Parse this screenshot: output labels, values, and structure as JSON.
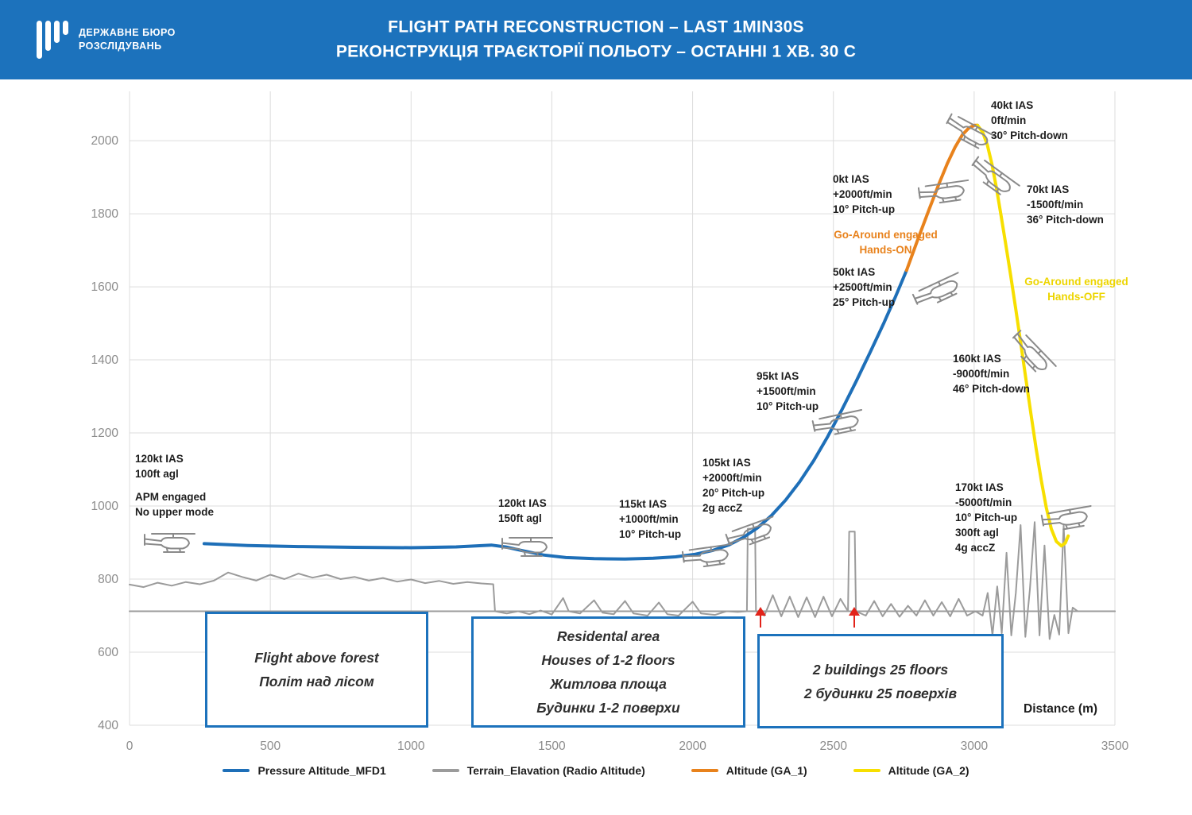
{
  "header": {
    "logo": {
      "line1": "ДЕРЖАВНЕ БЮРО",
      "line2": "РОЗСЛІДУВАНЬ"
    },
    "title_line1": "FLIGHT PATH RECONSTRUCTION – LAST 1MIN30S",
    "title_line2": "РЕКОНСТРУКЦІЯ ТРАЄКТОРІЇ ПОЛЬОТУ – ОСТАННІ 1 ХВ. 30 С"
  },
  "chart_data": {
    "type": "line",
    "title": "Flight path reconstruction – last 1min30s",
    "xlabel": "Distance (m)",
    "ylabel": "",
    "xlim": [
      0,
      3500
    ],
    "ylim": [
      400,
      2135
    ],
    "x_ticks": [
      0,
      500,
      1000,
      1500,
      2000,
      2500,
      3000,
      3500
    ],
    "y_ticks": [
      400,
      600,
      800,
      1000,
      1200,
      1400,
      1600,
      1800,
      2000
    ],
    "grid": true,
    "legend_position": "bottom",
    "series": [
      {
        "id": "ground-reference",
        "name": "Ground reference",
        "color": "#9B9B9B",
        "width": 2,
        "points": [
          [
            0,
            712
          ],
          [
            3500,
            712
          ]
        ]
      },
      {
        "id": "terrain",
        "name": "Terrain_Elavation (Radio Altitude)",
        "color": "#9B9B9B",
        "width": 2,
        "points": [
          [
            0,
            785
          ],
          [
            50,
            778
          ],
          [
            100,
            790
          ],
          [
            150,
            782
          ],
          [
            200,
            792
          ],
          [
            250,
            786
          ],
          [
            300,
            796
          ],
          [
            350,
            818
          ],
          [
            400,
            806
          ],
          [
            450,
            796
          ],
          [
            500,
            812
          ],
          [
            550,
            800
          ],
          [
            600,
            815
          ],
          [
            650,
            804
          ],
          [
            700,
            812
          ],
          [
            750,
            800
          ],
          [
            800,
            806
          ],
          [
            850,
            796
          ],
          [
            900,
            803
          ],
          [
            950,
            793
          ],
          [
            1000,
            799
          ],
          [
            1050,
            789
          ],
          [
            1100,
            795
          ],
          [
            1150,
            787
          ],
          [
            1200,
            792
          ],
          [
            1250,
            788
          ],
          [
            1292,
            786
          ],
          [
            1298,
            712
          ],
          [
            1340,
            706
          ],
          [
            1380,
            712
          ],
          [
            1420,
            704
          ],
          [
            1460,
            714
          ],
          [
            1500,
            703
          ],
          [
            1540,
            748
          ],
          [
            1560,
            712
          ],
          [
            1600,
            706
          ],
          [
            1650,
            742
          ],
          [
            1680,
            708
          ],
          [
            1720,
            704
          ],
          [
            1760,
            740
          ],
          [
            1790,
            706
          ],
          [
            1840,
            700
          ],
          [
            1880,
            736
          ],
          [
            1910,
            704
          ],
          [
            1950,
            700
          ],
          [
            2000,
            738
          ],
          [
            2030,
            706
          ],
          [
            2080,
            702
          ],
          [
            2120,
            712
          ],
          [
            2160,
            710
          ],
          [
            2193,
            712
          ],
          [
            2196,
            938
          ],
          [
            2222,
            938
          ],
          [
            2225,
            712
          ],
          [
            2255,
            700
          ],
          [
            2285,
            756
          ],
          [
            2315,
            698
          ],
          [
            2345,
            752
          ],
          [
            2375,
            696
          ],
          [
            2405,
            750
          ],
          [
            2435,
            696
          ],
          [
            2465,
            752
          ],
          [
            2495,
            698
          ],
          [
            2525,
            746
          ],
          [
            2552,
            712
          ],
          [
            2556,
            930
          ],
          [
            2576,
            930
          ],
          [
            2580,
            712
          ],
          [
            2615,
            700
          ],
          [
            2645,
            740
          ],
          [
            2675,
            698
          ],
          [
            2705,
            732
          ],
          [
            2735,
            697
          ],
          [
            2765,
            727
          ],
          [
            2795,
            700
          ],
          [
            2825,
            742
          ],
          [
            2855,
            700
          ],
          [
            2885,
            737
          ],
          [
            2915,
            698
          ],
          [
            2945,
            746
          ],
          [
            2975,
            700
          ],
          [
            3005,
            712
          ],
          [
            3030,
            700
          ],
          [
            3048,
            762
          ],
          [
            3065,
            646
          ],
          [
            3082,
            780
          ],
          [
            3098,
            652
          ],
          [
            3115,
            872
          ],
          [
            3132,
            646
          ],
          [
            3148,
            762
          ],
          [
            3165,
            948
          ],
          [
            3182,
            642
          ],
          [
            3198,
            772
          ],
          [
            3215,
            956
          ],
          [
            3232,
            646
          ],
          [
            3250,
            892
          ],
          [
            3268,
            636
          ],
          [
            3285,
            702
          ],
          [
            3302,
            648
          ],
          [
            3318,
            948
          ],
          [
            3335,
            652
          ],
          [
            3350,
            722
          ],
          [
            3368,
            712
          ],
          [
            3420,
            712
          ],
          [
            3500,
            712
          ]
        ]
      },
      {
        "id": "pressure-altitude",
        "name": "Pressure Altitude_MFD1",
        "color": "#1E6FB8",
        "width": 4,
        "points": [
          [
            265,
            897
          ],
          [
            420,
            892
          ],
          [
            600,
            889
          ],
          [
            800,
            887
          ],
          [
            1000,
            886
          ],
          [
            1160,
            888
          ],
          [
            1285,
            893
          ],
          [
            1335,
            888
          ],
          [
            1400,
            877
          ],
          [
            1470,
            866
          ],
          [
            1550,
            859
          ],
          [
            1650,
            856
          ],
          [
            1760,
            855
          ],
          [
            1860,
            857
          ],
          [
            1940,
            861
          ],
          [
            2010,
            868
          ],
          [
            2070,
            878
          ],
          [
            2130,
            894
          ],
          [
            2180,
            914
          ],
          [
            2230,
            940
          ],
          [
            2280,
            974
          ],
          [
            2330,
            1016
          ],
          [
            2380,
            1066
          ],
          [
            2430,
            1124
          ],
          [
            2480,
            1190
          ],
          [
            2530,
            1263
          ],
          [
            2580,
            1340
          ],
          [
            2630,
            1420
          ],
          [
            2680,
            1502
          ],
          [
            2720,
            1572
          ],
          [
            2760,
            1645
          ]
        ]
      },
      {
        "id": "altitude-ga1",
        "name": "Altitude (GA_1)",
        "color": "#E8821C",
        "width": 4,
        "points": [
          [
            2760,
            1645
          ],
          [
            2800,
            1730
          ],
          [
            2840,
            1812
          ],
          [
            2875,
            1882
          ],
          [
            2905,
            1938
          ],
          [
            2932,
            1982
          ],
          [
            2958,
            2016
          ],
          [
            2980,
            2034
          ],
          [
            3000,
            2042
          ],
          [
            3012,
            2042
          ]
        ]
      },
      {
        "id": "altitude-ga2",
        "name": "Altitude (GA_2)",
        "color": "#F7DF00",
        "width": 4,
        "points": [
          [
            3012,
            2042
          ],
          [
            3030,
            2024
          ],
          [
            3047,
            1988
          ],
          [
            3063,
            1936
          ],
          [
            3079,
            1872
          ],
          [
            3095,
            1798
          ],
          [
            3112,
            1718
          ],
          [
            3130,
            1630
          ],
          [
            3148,
            1538
          ],
          [
            3166,
            1443
          ],
          [
            3184,
            1347
          ],
          [
            3202,
            1251
          ],
          [
            3220,
            1158
          ],
          [
            3238,
            1072
          ],
          [
            3256,
            996
          ],
          [
            3274,
            938
          ],
          [
            3292,
            903
          ],
          [
            3310,
            891
          ],
          [
            3324,
            899
          ],
          [
            3334,
            918
          ]
        ]
      }
    ]
  },
  "annotations": [
    {
      "id": "ann-120kt-100ft",
      "text": "120kt IAS\n100ft agl"
    },
    {
      "id": "ann-apm",
      "text": "APM engaged\nNo upper mode"
    },
    {
      "id": "ann-120kt-150ft",
      "text": "120kt IAS\n150ft agl"
    },
    {
      "id": "ann-115kt",
      "text": "115kt IAS\n+1000ft/min\n10° Pitch-up"
    },
    {
      "id": "ann-105kt",
      "text": "105kt IAS\n+2000ft/min\n20° Pitch-up\n2g accZ"
    },
    {
      "id": "ann-95kt",
      "text": "95kt IAS\n+1500ft/min\n10° Pitch-up"
    },
    {
      "id": "ann-50kt",
      "text": "50kt IAS\n+2500ft/min\n25° Pitch-up"
    },
    {
      "id": "ann-0kt",
      "text": "0kt IAS\n+2000ft/min\n10° Pitch-up"
    },
    {
      "id": "ann-go-around-on",
      "text": "Go-Around engaged\nHands-ON",
      "color": "#E8821C"
    },
    {
      "id": "ann-40kt",
      "text": "40kt IAS\n0ft/min\n30° Pitch-down"
    },
    {
      "id": "ann-70kt",
      "text": "70kt IAS\n-1500ft/min\n36° Pitch-down"
    },
    {
      "id": "ann-go-around-off",
      "text": "Go-Around engaged\nHands-OFF",
      "color": "#EDD500"
    },
    {
      "id": "ann-160kt",
      "text": "160kt IAS\n-9000ft/min\n46° Pitch-down"
    },
    {
      "id": "ann-170kt",
      "text": "170kt IAS\n-5000ft/min\n10° Pitch-up\n300ft agl\n4g accZ"
    }
  ],
  "area_boxes": [
    {
      "id": "box-forest",
      "text": "Flight above forest\nПоліт над лісом"
    },
    {
      "id": "box-residential",
      "text": "Residental area\nHouses of 1-2 floors\nЖитлова площа\nБудинки 1-2 поверхи"
    },
    {
      "id": "box-buildings",
      "text": "2 buildings 25 floors\n2 будинки 25 поверхів"
    }
  ],
  "legend": [
    {
      "label": "Pressure Altitude_MFD1",
      "color": "#1E6FB8"
    },
    {
      "label": "Terrain_Elavation (Radio Altitude)",
      "color": "#9B9B9B"
    },
    {
      "label": "Altitude (GA_1)",
      "color": "#E8821C"
    },
    {
      "label": "Altitude (GA_2)",
      "color": "#F7DF00"
    }
  ],
  "colors": {
    "header_blue": "#1C72BC",
    "line_blue": "#1E6FB8",
    "line_gray": "#9B9B9B",
    "line_orange": "#E8821C",
    "line_yellow": "#F7DF00",
    "go_around_on_text": "#E8821C",
    "go_around_off_text": "#EDD500",
    "arrow_red": "#E2231A"
  }
}
